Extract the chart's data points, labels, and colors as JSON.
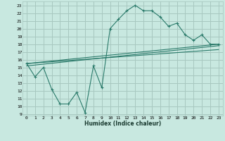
{
  "xlabel": "Humidex (Indice chaleur)",
  "bg_color": "#c8e8e0",
  "grid_color": "#a8c8c0",
  "line_color": "#2a7a6a",
  "xlim": [
    -0.5,
    23.5
  ],
  "ylim": [
    8.8,
    23.5
  ],
  "yticks": [
    9,
    10,
    11,
    12,
    13,
    14,
    15,
    16,
    17,
    18,
    19,
    20,
    21,
    22,
    23
  ],
  "xticks": [
    0,
    1,
    2,
    3,
    4,
    5,
    6,
    7,
    8,
    9,
    10,
    11,
    12,
    13,
    14,
    15,
    16,
    17,
    18,
    19,
    20,
    21,
    22,
    23
  ],
  "main_line_x": [
    0,
    1,
    2,
    3,
    4,
    5,
    6,
    7,
    8,
    9,
    10,
    11,
    12,
    13,
    14,
    15,
    16,
    17,
    18,
    19,
    20,
    21,
    22,
    23
  ],
  "main_line_y": [
    15.5,
    13.8,
    15.0,
    12.2,
    10.3,
    10.3,
    11.8,
    9.2,
    15.2,
    12.4,
    20.0,
    21.2,
    22.3,
    23.0,
    22.3,
    22.3,
    21.5,
    20.3,
    20.7,
    19.2,
    18.5,
    19.2,
    18.0,
    18.0
  ],
  "reg_line1_x": [
    0,
    23
  ],
  "reg_line1_y": [
    15.5,
    18.0
  ],
  "reg_line2_x": [
    0,
    23
  ],
  "reg_line2_y": [
    15.5,
    17.3
  ],
  "reg_line3_x": [
    0,
    23
  ],
  "reg_line3_y": [
    15.2,
    17.8
  ]
}
